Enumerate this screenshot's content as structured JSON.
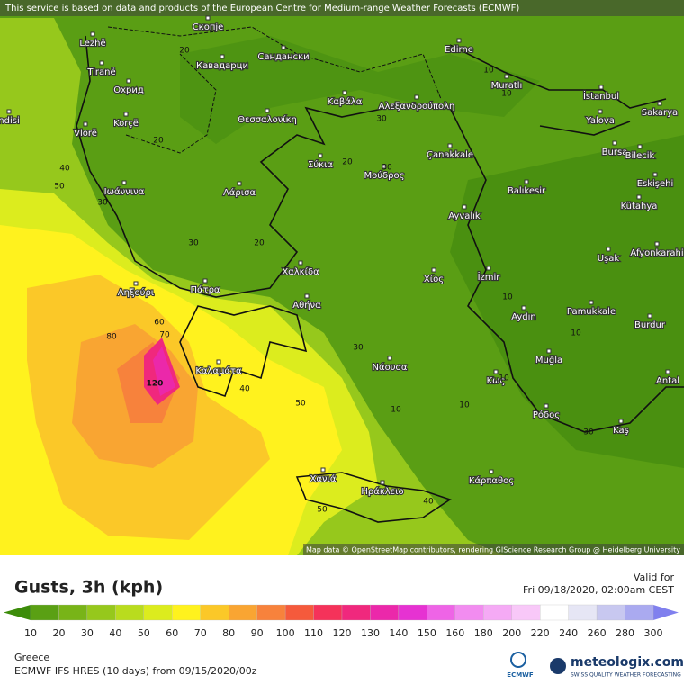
{
  "header": {
    "notice": "This service is based on data and products of the European Centre for Medium-range Weather Forecasts (ECMWF)"
  },
  "map": {
    "places": [
      "ndisi",
      "Lezhë",
      "Скопје",
      "Tiranë",
      "Кавадарци",
      "Сандански",
      "Edirne",
      "Охрид",
      "Muratlı",
      "İstanbul",
      "Korçë",
      "Καβάλα",
      "Αλεξανδρούπολη",
      "Yalova",
      "Sakarya",
      "Vlorë",
      "Θεσσαλονίκη",
      "Çanakkale",
      "Bursa",
      "Bilecik",
      "Σύκια",
      "Μούδρος",
      "Eskişehi",
      "Balıkesir",
      "Ιωάννινα",
      "Λάρισα",
      "Kütahya",
      "Ayvalık",
      "Afyonkarahi",
      "Uşak",
      "Χαλκίδα",
      "İzmir",
      "Χίος",
      "Ληξούρι",
      "Πάτρα",
      "Αθήνα",
      "Pamukkale",
      "Aydın",
      "Burdur",
      "Καλαμάτα",
      "Νάουσα",
      "Muğla",
      "Antal",
      "Κως",
      "Ρόδος",
      "Kaş",
      "Χανιά",
      "Ηράκλειο",
      "Κάρπαθος"
    ],
    "contour_labels": [
      40,
      50,
      30,
      20,
      20,
      30,
      20,
      10,
      10,
      30,
      20,
      30,
      10,
      10,
      10,
      60,
      70,
      80,
      40,
      30,
      50,
      10,
      10,
      30,
      50,
      40,
      120
    ],
    "attribution": "Map data © OpenStreetMap contributors, rendering GIScience Research Group @ Heidelberg University"
  },
  "legend": {
    "title": "Gusts, 3h (kph)",
    "valid_label": "Valid for",
    "valid_time": "Fri 09/18/2020, 02:00am CEST",
    "ticks": [
      10,
      20,
      30,
      40,
      50,
      60,
      70,
      80,
      90,
      100,
      110,
      120,
      130,
      140,
      150,
      160,
      180,
      200,
      220,
      240,
      260,
      280,
      300
    ],
    "colors": [
      "#5aa014",
      "#78b418",
      "#96c81c",
      "#b9dc1e",
      "#dcec1e",
      "#fff21e",
      "#fbc828",
      "#f9a532",
      "#f7823c",
      "#f55a3c",
      "#f5325a",
      "#f0287d",
      "#eb28aa",
      "#e632d2",
      "#ee64e6",
      "#f28cf0",
      "#f5aaf5",
      "#f8c8f8",
      "#ffffff",
      "#e6e6f5",
      "#c8c8f0",
      "#aaaaf0"
    ],
    "under_color": "#3c8c0a",
    "over_color": "#8080ee"
  },
  "footer": {
    "region": "Greece",
    "model": "ECMWF IFS HRES (10 days) from 09/15/2020/00z",
    "ecmwf": "ECMWF",
    "brand": "meteologix.com",
    "tagline": "SWISS QUALITY WEATHER FORECASTING"
  }
}
